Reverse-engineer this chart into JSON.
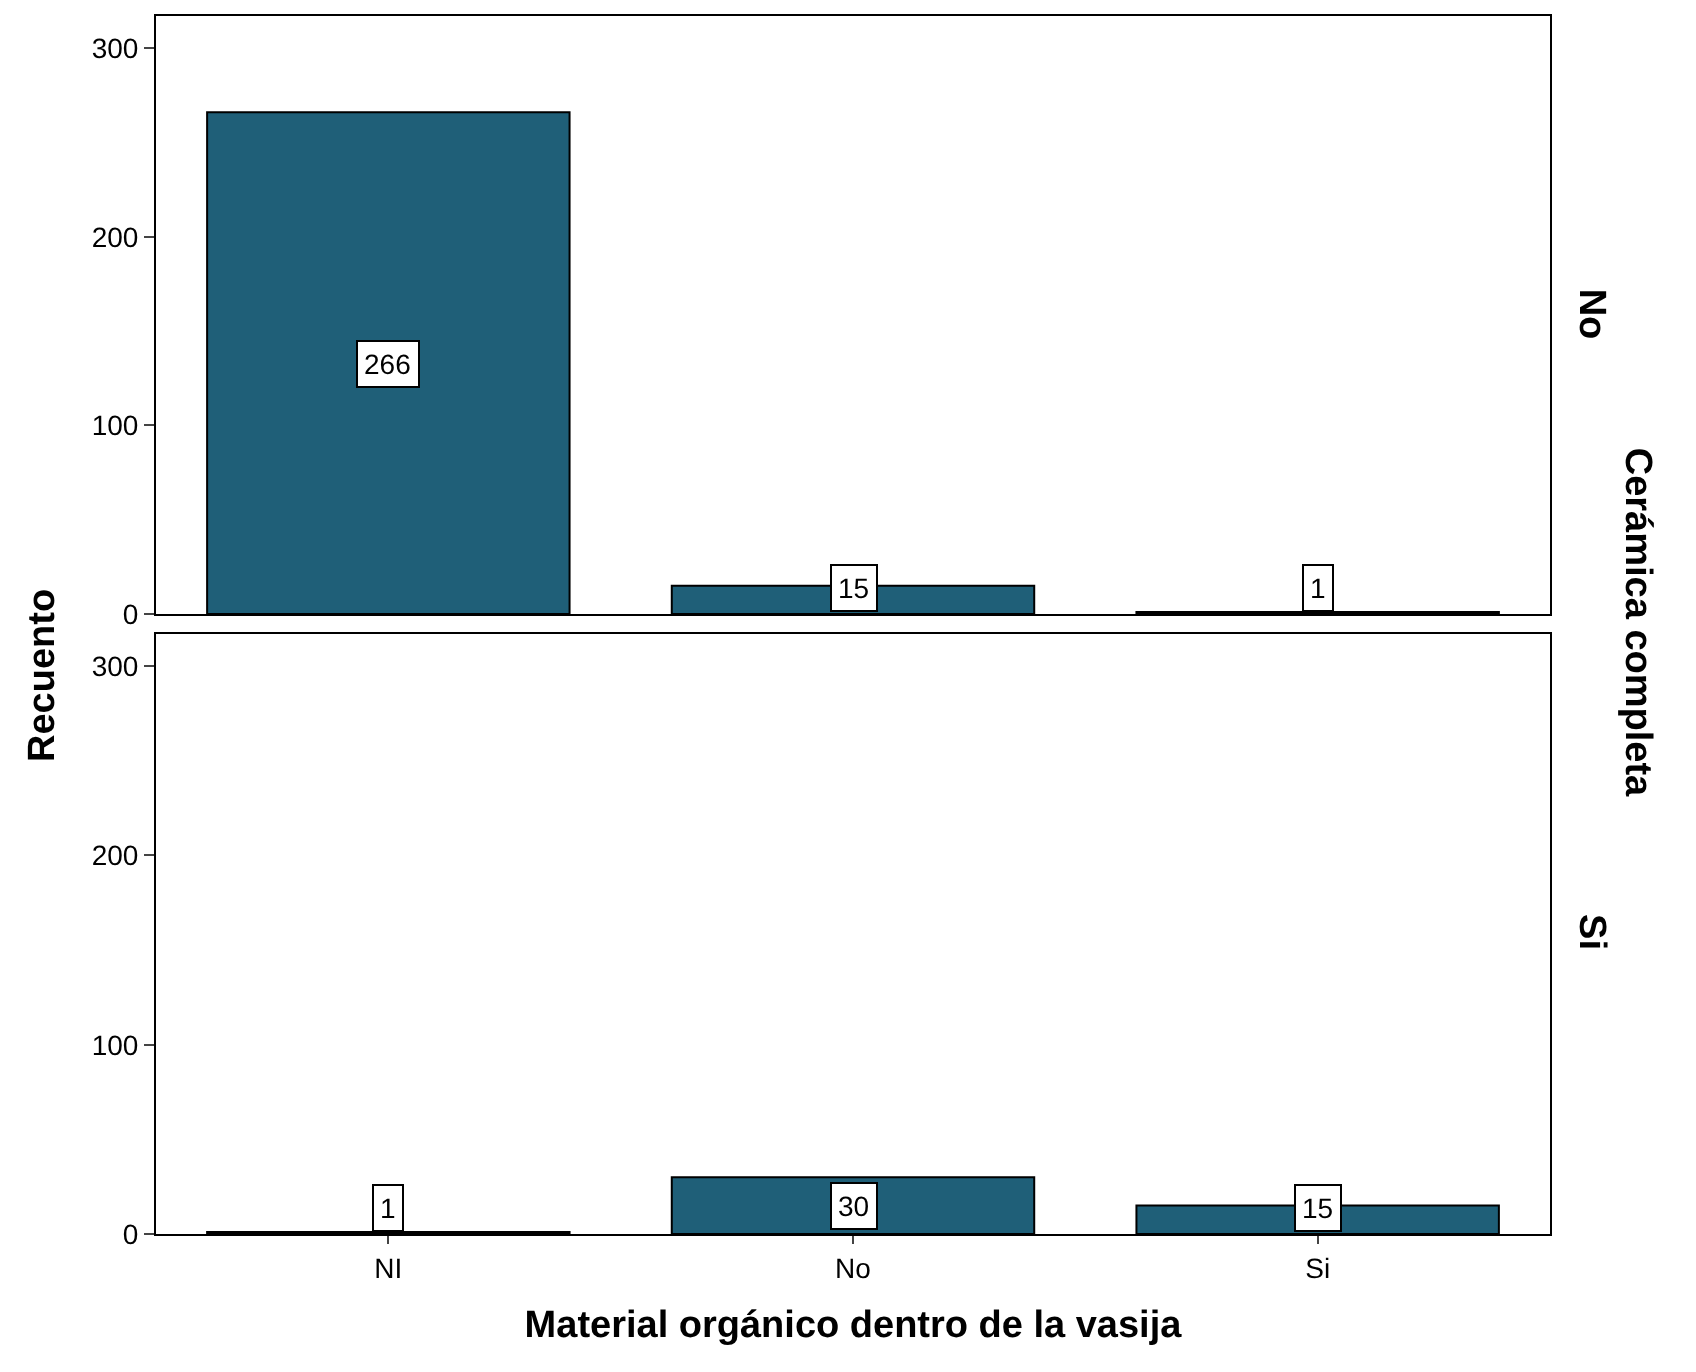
{
  "chart_data": [
    {
      "type": "bar",
      "title": "No",
      "ylabel": "Recuento",
      "annotations": [
        "Cerámica completa"
      ],
      "categories": [
        null,
        null,
        null
      ],
      "values": [
        266,
        15,
        1
      ],
      "color": "#1f5f78",
      "ylim": [
        0,
        317
      ],
      "yticks": [
        0,
        100,
        200,
        300
      ],
      "data_labels": true,
      "tick_labels": "y"
    },
    {
      "type": "bar",
      "title": "Si",
      "xlabel": "Material orgánico dentro de la vasija",
      "categories": [
        "NI",
        "No",
        "Si"
      ],
      "values": [
        1,
        30,
        15
      ],
      "color": "#1f5f78",
      "ylim": [
        0,
        317
      ],
      "yticks": [
        0,
        100,
        200,
        300
      ],
      "data_labels": true
    }
  ]
}
